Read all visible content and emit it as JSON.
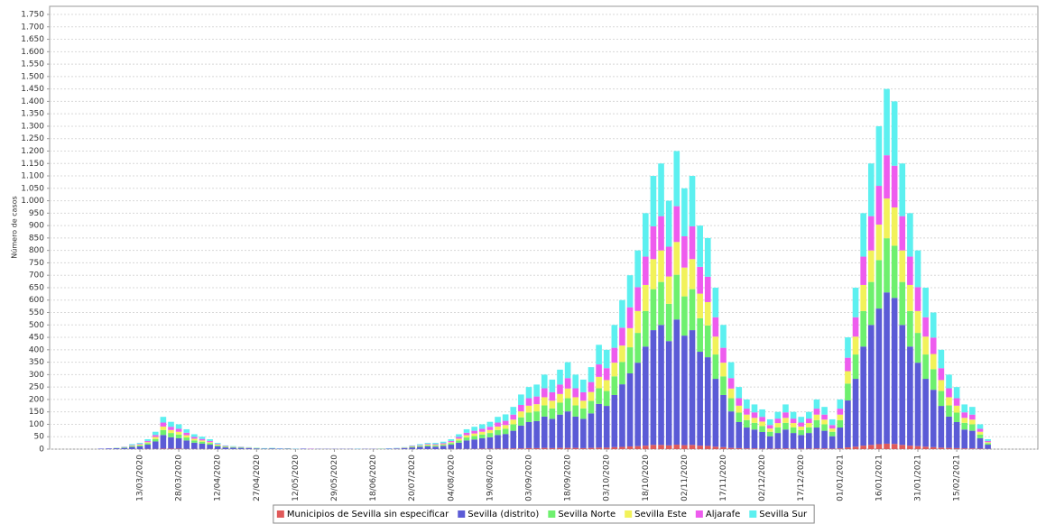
{
  "chart_data": {
    "type": "stacked_bar",
    "y_label": "Número de casos",
    "ylim": [
      0,
      1750
    ],
    "yticks": [
      0,
      50,
      100,
      150,
      200,
      250,
      300,
      350,
      400,
      450,
      500,
      550,
      600,
      650,
      700,
      750,
      800,
      850,
      900,
      950,
      {
        "value": 1000,
        "label": "1.000"
      },
      {
        "value": 1050,
        "label": "1.050"
      },
      {
        "value": 1100,
        "label": "1.100"
      },
      {
        "value": 1150,
        "label": "1.150"
      },
      {
        "value": 1200,
        "label": "1.200"
      },
      {
        "value": 1250,
        "label": "1.250"
      },
      {
        "value": 1300,
        "label": "1.300"
      },
      {
        "value": 1350,
        "label": "1.350"
      },
      {
        "value": 1400,
        "label": "1.400"
      },
      {
        "value": 1450,
        "label": "1.450"
      },
      {
        "value": 1500,
        "label": "1.500"
      },
      {
        "value": 1550,
        "label": "1.550"
      },
      {
        "value": 1600,
        "label": "1.600"
      },
      {
        "value": 1650,
        "label": "1.650"
      },
      {
        "value": 1700,
        "label": "1.700"
      },
      {
        "value": 1750,
        "label": "1.750"
      }
    ],
    "grid": true,
    "legend": "bottom",
    "categories": [
      null,
      null,
      null,
      null,
      null,
      "13/03/2020",
      null,
      null,
      null,
      null,
      "28/03/2020",
      null,
      null,
      null,
      null,
      "12/04/2020",
      null,
      null,
      null,
      null,
      "27/04/2020",
      null,
      null,
      null,
      null,
      "12/05/2020",
      null,
      null,
      null,
      null,
      "29/05/2020",
      null,
      null,
      null,
      null,
      "18/06/2020",
      null,
      null,
      null,
      null,
      "20/07/2020",
      null,
      null,
      null,
      null,
      "04/08/2020",
      null,
      null,
      null,
      null,
      "19/08/2020",
      null,
      null,
      null,
      null,
      "03/09/2020",
      null,
      null,
      null,
      null,
      "18/09/2020",
      null,
      null,
      null,
      null,
      "03/10/2020",
      null,
      null,
      null,
      null,
      "18/10/2020",
      null,
      null,
      null,
      null,
      "02/11/2020",
      null,
      null,
      null,
      null,
      "17/11/2020",
      null,
      null,
      null,
      null,
      "02/12/2020",
      null,
      null,
      null,
      null,
      "17/12/2020",
      null,
      null,
      null,
      null,
      "01/01/2021",
      null,
      null,
      null,
      null,
      "16/01/2021",
      null,
      null,
      null,
      null,
      "31/01/2021",
      null,
      null,
      null,
      null,
      "15/02/2021",
      null,
      null,
      null,
      null
    ],
    "series": [
      {
        "name": "Municipios de Sevilla sin especificar",
        "color": "#e05a5a",
        "values": [
          0,
          0,
          0,
          0,
          0,
          0,
          1,
          1,
          2,
          2,
          2,
          1,
          1,
          1,
          1,
          0,
          0,
          0,
          0,
          0,
          0,
          0,
          0,
          0,
          0,
          0,
          0,
          0,
          0,
          0,
          0,
          0,
          0,
          0,
          0,
          0,
          0,
          0,
          0,
          0,
          0,
          0,
          0,
          0,
          0,
          1,
          1,
          1,
          1,
          2,
          2,
          2,
          2,
          3,
          3,
          4,
          4,
          5,
          4,
          5,
          5,
          5,
          4,
          5,
          6,
          6,
          8,
          9,
          11,
          12,
          14,
          17,
          17,
          15,
          18,
          16,
          17,
          14,
          13,
          10,
          8,
          5,
          4,
          3,
          3,
          2,
          2,
          2,
          3,
          2,
          2,
          2,
          3,
          3,
          2,
          3,
          7,
          10,
          14,
          17,
          20,
          22,
          21,
          17,
          14,
          12,
          10,
          8,
          6,
          5,
          4,
          3,
          3,
          2,
          1
        ]
      },
      {
        "name": "Sevilla (distrito)",
        "color": "#5b5bd6",
        "values": [
          2,
          3,
          4,
          5,
          9,
          11,
          17,
          30,
          55,
          46,
          42,
          34,
          25,
          21,
          17,
          11,
          7,
          6,
          5,
          4,
          3,
          2,
          3,
          2,
          2,
          1,
          2,
          1,
          1,
          1,
          1,
          1,
          1,
          1,
          1,
          1,
          1,
          2,
          2,
          4,
          7,
          9,
          11,
          10,
          13,
          17,
          25,
          34,
          38,
          42,
          46,
          55,
          59,
          71,
          92,
          105,
          109,
          126,
          118,
          134,
          147,
          126,
          118,
          139,
          176,
          168,
          210,
          252,
          294,
          336,
          399,
          462,
          483,
          420,
          504,
          441,
          462,
          378,
          357,
          273,
          210,
          147,
          105,
          84,
          76,
          67,
          50,
          63,
          76,
          63,
          55,
          63,
          84,
          71,
          50,
          84,
          189,
          273,
          399,
          483,
          546,
          609,
          588,
          483,
          399,
          336,
          273,
          231,
          168,
          126,
          105,
          76,
          71,
          42,
          17
        ]
      },
      {
        "name": "Sevilla Norte",
        "color": "#6ef06e",
        "values": [
          0,
          0,
          1,
          2,
          3,
          4,
          6,
          10,
          20,
          17,
          15,
          12,
          9,
          8,
          6,
          4,
          2,
          2,
          2,
          1,
          1,
          1,
          1,
          0,
          1,
          0,
          0,
          0,
          0,
          0,
          0,
          0,
          0,
          0,
          0,
          0,
          1,
          0,
          1,
          1,
          2,
          3,
          4,
          4,
          4,
          6,
          9,
          12,
          14,
          15,
          17,
          20,
          21,
          26,
          33,
          38,
          39,
          45,
          42,
          48,
          53,
          45,
          42,
          50,
          63,
          60,
          75,
          90,
          105,
          120,
          143,
          165,
          173,
          150,
          180,
          158,
          165,
          135,
          128,
          98,
          75,
          53,
          38,
          30,
          27,
          24,
          18,
          23,
          27,
          23,
          20,
          23,
          30,
          26,
          18,
          30,
          68,
          98,
          143,
          173,
          195,
          218,
          210,
          173,
          143,
          120,
          98,
          83,
          60,
          45,
          38,
          27,
          26,
          15,
          6
        ]
      },
      {
        "name": "Sevilla Este",
        "color": "#f2f25a",
        "values": [
          0,
          0,
          0,
          1,
          2,
          3,
          4,
          8,
          14,
          12,
          11,
          9,
          7,
          5,
          4,
          3,
          2,
          1,
          1,
          1,
          1,
          0,
          0,
          0,
          0,
          0,
          0,
          0,
          0,
          0,
          0,
          0,
          0,
          0,
          0,
          0,
          0,
          0,
          0,
          1,
          2,
          2,
          3,
          3,
          3,
          4,
          7,
          9,
          10,
          11,
          12,
          14,
          15,
          19,
          24,
          28,
          29,
          33,
          31,
          35,
          39,
          33,
          31,
          36,
          46,
          44,
          55,
          66,
          77,
          88,
          105,
          121,
          127,
          110,
          132,
          116,
          121,
          99,
          94,
          72,
          55,
          39,
          28,
          22,
          20,
          18,
          13,
          17,
          20,
          17,
          14,
          17,
          22,
          19,
          13,
          22,
          50,
          72,
          105,
          127,
          143,
          160,
          154,
          127,
          105,
          88,
          72,
          61,
          44,
          33,
          28,
          20,
          19,
          11,
          4
        ]
      },
      {
        "name": "Aljarafe",
        "color": "#ee5cee",
        "values": [
          0,
          0,
          0,
          1,
          2,
          3,
          5,
          8,
          16,
          13,
          12,
          10,
          7,
          6,
          5,
          3,
          2,
          1,
          1,
          1,
          0,
          0,
          0,
          0,
          0,
          0,
          0,
          1,
          0,
          0,
          0,
          0,
          0,
          0,
          0,
          0,
          0,
          0,
          1,
          1,
          2,
          2,
          3,
          3,
          4,
          5,
          7,
          10,
          11,
          12,
          13,
          16,
          17,
          20,
          26,
          30,
          31,
          36,
          34,
          38,
          42,
          36,
          34,
          40,
          50,
          48,
          60,
          72,
          84,
          96,
          114,
          132,
          138,
          120,
          144,
          126,
          132,
          108,
          102,
          78,
          60,
          42,
          30,
          24,
          22,
          19,
          14,
          18,
          22,
          18,
          16,
          18,
          24,
          20,
          14,
          24,
          54,
          78,
          114,
          138,
          156,
          174,
          168,
          138,
          114,
          96,
          78,
          66,
          48,
          36,
          30,
          22,
          20,
          12,
          5
        ]
      },
      {
        "name": "Sevilla Sur",
        "color": "#5cf0f0",
        "values": [
          0,
          0,
          0,
          1,
          4,
          4,
          7,
          13,
          23,
          20,
          18,
          14,
          11,
          9,
          7,
          4,
          2,
          2,
          1,
          1,
          1,
          1,
          1,
          1,
          0,
          1,
          0,
          0,
          0,
          0,
          0,
          0,
          0,
          1,
          0,
          0,
          0,
          1,
          1,
          1,
          2,
          4,
          4,
          5,
          6,
          7,
          11,
          14,
          16,
          18,
          20,
          23,
          26,
          31,
          42,
          45,
          48,
          55,
          51,
          60,
          64,
          55,
          51,
          60,
          79,
          74,
          92,
          111,
          129,
          148,
          175,
          203,
          212,
          185,
          222,
          193,
          203,
          166,
          156,
          119,
          92,
          64,
          45,
          37,
          32,
          30,
          23,
          27,
          32,
          27,
          23,
          27,
          37,
          31,
          23,
          37,
          82,
          119,
          175,
          212,
          240,
          267,
          259,
          212,
          175,
          148,
          119,
          101,
          74,
          55,
          45,
          32,
          31,
          18,
          7
        ]
      }
    ]
  }
}
